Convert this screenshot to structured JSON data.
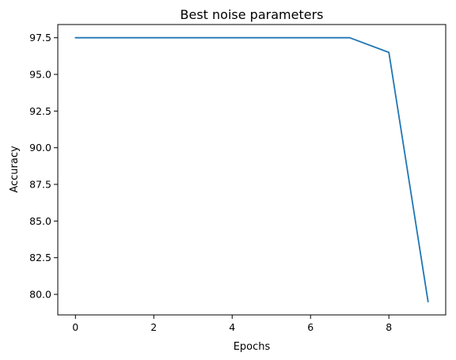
{
  "chart_data": {
    "type": "line",
    "title": "Best noise parameters",
    "xlabel": "Epochs",
    "ylabel": "Accuracy",
    "xlim": [
      -0.45,
      9.45
    ],
    "ylim": [
      78.6,
      98.4
    ],
    "xticks": [
      0,
      2,
      4,
      6,
      8
    ],
    "xtick_labels": [
      "0",
      "2",
      "4",
      "6",
      "8"
    ],
    "yticks": [
      80.0,
      82.5,
      85.0,
      87.5,
      90.0,
      92.5,
      95.0,
      97.5
    ],
    "ytick_labels": [
      "80.0",
      "82.5",
      "85.0",
      "87.5",
      "90.0",
      "92.5",
      "95.0",
      "97.5"
    ],
    "grid": false,
    "series": [
      {
        "color": "#1f77b4",
        "x": [
          0,
          1,
          2,
          3,
          4,
          5,
          6,
          7,
          8,
          9
        ],
        "y": [
          97.5,
          97.5,
          97.5,
          97.5,
          97.5,
          97.5,
          97.5,
          97.5,
          96.5,
          79.5
        ]
      }
    ]
  }
}
